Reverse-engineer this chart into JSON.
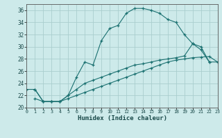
{
  "xlabel": "Humidex (Indice chaleur)",
  "background_color": "#cdeaea",
  "grid_color": "#aacece",
  "line_color": "#1a7070",
  "xlim": [
    0,
    23
  ],
  "ylim": [
    20,
    37
  ],
  "xticks": [
    0,
    1,
    2,
    3,
    4,
    5,
    6,
    7,
    8,
    9,
    10,
    11,
    12,
    13,
    14,
    15,
    16,
    17,
    18,
    19,
    20,
    21,
    22,
    23
  ],
  "yticks": [
    20,
    22,
    24,
    26,
    28,
    30,
    32,
    34,
    36
  ],
  "series": [
    {
      "x": [
        0,
        1,
        2,
        3,
        4,
        5,
        6,
        7,
        8,
        9,
        10,
        11,
        12,
        13,
        14,
        15,
        16,
        17,
        18,
        19,
        20,
        21,
        22
      ],
      "y": [
        23,
        23,
        21,
        21,
        21,
        22,
        25,
        27.5,
        27,
        31,
        33,
        33.5,
        35.5,
        36.3,
        36.3,
        36,
        35.5,
        34.5,
        34,
        32,
        30.5,
        30,
        27.5
      ]
    },
    {
      "x": [
        1,
        2,
        3,
        4,
        5,
        6,
        7,
        8,
        9,
        10,
        11,
        12,
        13,
        14,
        15,
        16,
        17,
        18,
        19,
        20,
        21,
        22,
        23
      ],
      "y": [
        21.5,
        21,
        21,
        21,
        21.5,
        22,
        22.5,
        23,
        23.5,
        24,
        24.5,
        25,
        25.5,
        26,
        26.5,
        27,
        27.5,
        27.8,
        28,
        28.2,
        28.3,
        28.4,
        27.5
      ]
    },
    {
      "x": [
        1,
        2,
        3,
        4,
        5,
        6,
        7,
        8,
        9,
        10,
        11,
        12,
        13,
        14,
        15,
        16,
        17,
        18,
        19,
        20,
        21,
        22,
        23
      ],
      "y": [
        23,
        21,
        21,
        21,
        22,
        23,
        24,
        24.5,
        25,
        25.5,
        26,
        26.5,
        27,
        27.2,
        27.5,
        27.8,
        28,
        28.2,
        28.5,
        30.5,
        29.5,
        27.5,
        27.5
      ]
    }
  ]
}
